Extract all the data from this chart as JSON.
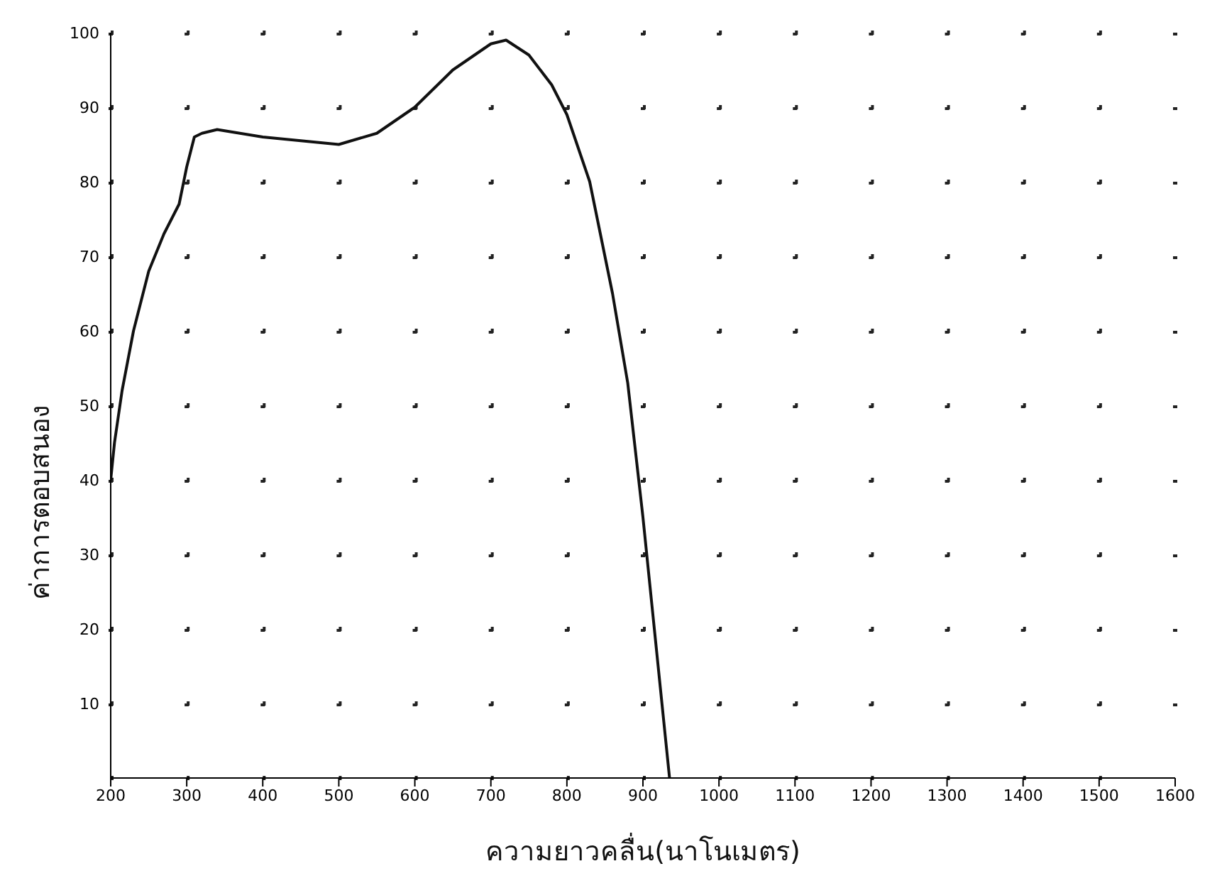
{
  "chart_data": {
    "type": "line",
    "xlabel": "ความยาวคลื่น(นาโนเมตร)",
    "ylabel": "ค่าการตอบสนอง",
    "series": [
      {
        "color": "#111111",
        "x": [
          200,
          205,
          215,
          230,
          250,
          270,
          290,
          300,
          310,
          320,
          340,
          370,
          400,
          450,
          500,
          550,
          600,
          650,
          700,
          720,
          750,
          780,
          800,
          830,
          860,
          880,
          900,
          915,
          925,
          935
        ],
        "values": [
          40,
          45,
          52,
          60,
          68,
          73,
          77,
          82,
          86,
          86.5,
          87,
          86.5,
          86,
          85.5,
          85,
          86.5,
          90,
          95,
          98.5,
          99,
          97,
          93,
          89,
          80,
          65,
          53,
          35,
          20,
          10,
          0
        ]
      }
    ],
    "xlim": [
      200,
      1600
    ],
    "xticks": [
      200,
      300,
      400,
      500,
      600,
      700,
      800,
      900,
      1000,
      1100,
      1200,
      1300,
      1400,
      1500,
      1600
    ],
    "ylim": [
      0,
      100
    ],
    "yticks": [
      10,
      20,
      30,
      40,
      50,
      60,
      70,
      80,
      90,
      100
    ],
    "grid": true,
    "marker": "none",
    "line_style": "solid"
  }
}
